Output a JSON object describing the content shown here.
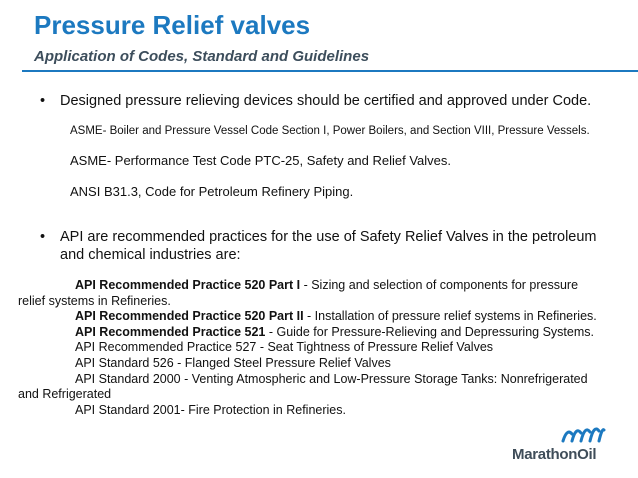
{
  "header": {
    "title": "Pressure Relief valves",
    "subtitle": "Application of Codes, Standard and Guidelines"
  },
  "bullets": [
    {
      "symbol": "•",
      "text": "Designed pressure relieving devices should be certified and approved under Code.",
      "subitems": [
        "ASME- Boiler and Pressure Vessel Code Section I, Power Boilers, and Section VIII, Pressure Vessels.",
        "ASME- Performance Test Code PTC-25, Safety and Relief Valves.",
        "ANSI B31.3, Code for Petroleum Refinery Piping."
      ]
    },
    {
      "symbol": "•",
      "text": "API are recommended practices for the use of Safety Relief Valves in the petroleum and chemical industries are:"
    }
  ],
  "api_list": [
    {
      "bold": "API Recommended Practice 520 Part I",
      "rest": " - Sizing and selection of components for pressure relief systems in Refineries."
    },
    {
      "bold": "API Recommended Practice 520 Part II",
      "rest": " - Installation of pressure relief systems in Refineries."
    },
    {
      "bold": "API Recommended Practice 521",
      "rest": " - Guide for Pressure-Relieving and Depressuring Systems."
    },
    {
      "bold": "",
      "rest": "API Recommended Practice 527 - Seat Tightness of Pressure Relief Valves"
    },
    {
      "bold": "",
      "rest": "API Standard 526 - Flanged Steel Pressure Relief Valves"
    },
    {
      "bold": "",
      "rest": "API Standard 2000 - Venting Atmospheric and Low-Pressure Storage Tanks: Nonrefrigerated and Refrigerated"
    },
    {
      "bold": "",
      "rest": "API Standard 2001- Fire Protection in Refineries."
    }
  ],
  "logo": {
    "name": "MarathonOil",
    "color": "#1c79c0",
    "text_color": "#3f4d59"
  },
  "colors": {
    "title": "#1c79c0",
    "subtitle": "#3d4e5c",
    "rule": "#1c79c0"
  }
}
